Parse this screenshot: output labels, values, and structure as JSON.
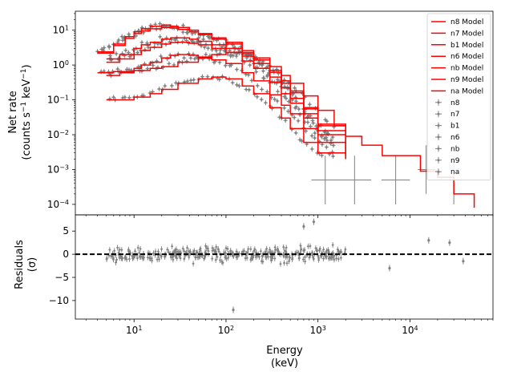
{
  "chart_data": [
    {
      "panel": "spectrum",
      "type": "line",
      "xscale": "log",
      "yscale": "log",
      "xlim": [
        2.3,
        80000
      ],
      "ylim": [
        5e-05,
        35
      ],
      "ylabel_line1": "Net rate",
      "ylabel_line2": "(counts s",
      "ylabel_sup1": "−1",
      "ylabel_mid": " keV",
      "ylabel_sup2": "−1",
      "ylabel_end": ")",
      "yticks": [
        {
          "value": 0.0001,
          "base": "10",
          "exp": "−4"
        },
        {
          "value": 0.001,
          "base": "10",
          "exp": "−3"
        },
        {
          "value": 0.01,
          "base": "10",
          "exp": "−2"
        },
        {
          "value": 0.1,
          "base": "10",
          "exp": "−1"
        },
        {
          "value": 1,
          "base": "10",
          "exp": "0"
        },
        {
          "value": 10,
          "base": "10",
          "exp": "1"
        }
      ],
      "legend": {
        "placement": "top-right",
        "models": [
          "n8 Model",
          "n7 Model",
          "b1 Model",
          "n6 Model",
          "nb Model",
          "n9 Model",
          "na Model"
        ],
        "data": [
          "n8",
          "n7",
          "b1",
          "n6",
          "nb",
          "n9",
          "na"
        ]
      },
      "colors": {
        "model": "#ff0000",
        "data": "#808080"
      },
      "model_series": [
        {
          "name": "n8 Model",
          "x": [
            4,
            6,
            8,
            10,
            12,
            15,
            20,
            25,
            30,
            40,
            50,
            70,
            100,
            150,
            200,
            300,
            400,
            500,
            700,
            1000,
            2000
          ],
          "y": [
            2.4,
            4,
            6.5,
            9,
            11,
            13,
            14,
            13,
            12,
            10,
            8,
            6,
            4.5,
            2.6,
            1.6,
            0.7,
            0.35,
            0.18,
            0.06,
            0.02,
            0.003
          ]
        },
        {
          "name": "n7 Model",
          "x": [
            4,
            6,
            8,
            10,
            12,
            15,
            20,
            25,
            30,
            40,
            50,
            70,
            100,
            150,
            200,
            300,
            400,
            500,
            700,
            1000,
            2000
          ],
          "y": [
            2.2,
            3.6,
            5.8,
            8,
            9.5,
            11,
            12,
            11.5,
            10.5,
            9,
            7.5,
            5.5,
            4,
            2.3,
            1.4,
            0.62,
            0.3,
            0.16,
            0.055,
            0.018,
            0.0028
          ]
        },
        {
          "name": "b1 Model",
          "x": [
            4,
            6,
            10,
            15,
            20,
            30,
            50,
            70,
            100,
            150,
            200,
            300,
            400,
            500,
            700,
            1000,
            1500,
            2000,
            3000,
            5000,
            8000,
            13000,
            20000,
            30000,
            50000
          ],
          "y": [
            0.6,
            0.65,
            0.7,
            0.8,
            0.9,
            1.2,
            1.6,
            2,
            2.3,
            2.1,
            1.6,
            0.9,
            0.5,
            0.3,
            0.13,
            0.05,
            0.018,
            0.009,
            0.005,
            0.0025,
            0.0025,
            0.0009,
            0.0006,
            0.0002,
            8e-05
          ]
        },
        {
          "name": "n6 Model",
          "x": [
            5,
            7,
            10,
            12,
            15,
            20,
            25,
            30,
            40,
            50,
            70,
            100,
            150,
            200,
            300,
            400,
            500,
            700,
            1000,
            2000
          ],
          "y": [
            1.5,
            2,
            3,
            3.8,
            4.5,
            5.5,
            6,
            6,
            5.5,
            4.8,
            3.8,
            3,
            1.8,
            1.1,
            0.45,
            0.22,
            0.11,
            0.04,
            0.013,
            0.0025
          ]
        },
        {
          "name": "nb Model",
          "x": [
            5,
            7,
            10,
            12,
            15,
            20,
            25,
            30,
            40,
            50,
            70,
            100,
            150,
            200,
            300,
            400,
            500,
            700,
            1000,
            2000
          ],
          "y": [
            1.2,
            1.5,
            2,
            2.6,
            3.2,
            4,
            4.4,
            4.5,
            4.2,
            3.8,
            3,
            2.3,
            1.3,
            0.8,
            0.32,
            0.15,
            0.08,
            0.03,
            0.01,
            0.0025
          ]
        },
        {
          "name": "n9 Model",
          "x": [
            5,
            7,
            10,
            12,
            15,
            20,
            25,
            30,
            40,
            50,
            70,
            100,
            150,
            200,
            300,
            400,
            500,
            700,
            1000,
            2000
          ],
          "y": [
            0.5,
            0.6,
            0.8,
            1,
            1.2,
            1.6,
            1.9,
            2,
            1.9,
            1.7,
            1.4,
            1.1,
            0.6,
            0.35,
            0.14,
            0.07,
            0.04,
            0.015,
            0.006,
            0.002
          ]
        },
        {
          "name": "na Model",
          "x": [
            5,
            7,
            10,
            15,
            20,
            30,
            50,
            70,
            100,
            150,
            200,
            300,
            400,
            500,
            700,
            1000,
            2000
          ],
          "y": [
            0.1,
            0.1,
            0.12,
            0.15,
            0.2,
            0.3,
            0.4,
            0.45,
            0.4,
            0.25,
            0.15,
            0.06,
            0.03,
            0.015,
            0.006,
            0.003,
            0.002
          ]
        }
      ]
    },
    {
      "panel": "residuals",
      "type": "scatter",
      "xscale": "log",
      "xlim": [
        2.3,
        80000
      ],
      "ylim": [
        -14,
        8.5
      ],
      "xlabel_line1": "Energy",
      "xlabel_line2": "(keV)",
      "ylabel_line1": "Residuals",
      "ylabel_line2": "(σ)",
      "reference_line": 0,
      "yticks": [
        5,
        0,
        -5,
        -10
      ],
      "xticks": [
        {
          "value": 10,
          "base": "10",
          "exp": "1"
        },
        {
          "value": 100,
          "base": "10",
          "exp": "2"
        },
        {
          "value": 1000,
          "base": "10",
          "exp": "3"
        },
        {
          "value": 10000,
          "base": "10",
          "exp": "4"
        }
      ],
      "highlighted_points": [
        {
          "x": 120,
          "y": -12
        },
        {
          "x": 700,
          "y": 6
        },
        {
          "x": 900,
          "y": 7
        },
        {
          "x": 16000,
          "y": 3
        },
        {
          "x": 27000,
          "y": 2.5
        },
        {
          "x": 6000,
          "y": -3
        },
        {
          "x": 38000,
          "y": -1.5
        }
      ]
    }
  ]
}
